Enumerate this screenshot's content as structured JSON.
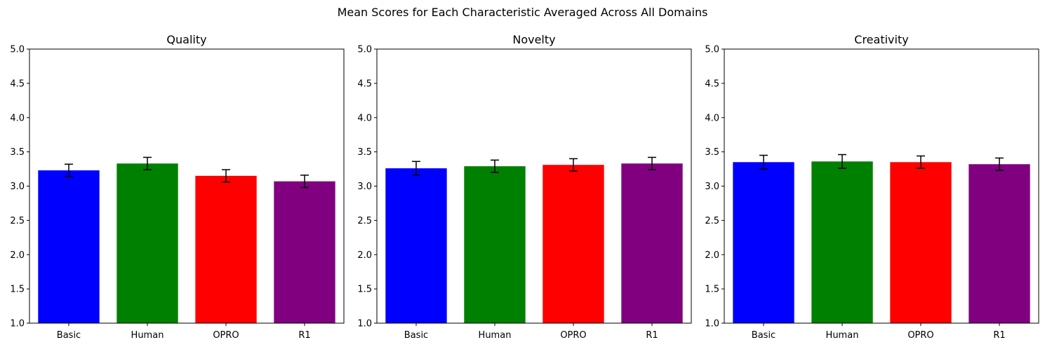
{
  "figure": {
    "title": "Mean Scores for Each Characteristic Averaged Across All Domains"
  },
  "chart_data": [
    {
      "type": "bar",
      "title": "Quality",
      "xlabel": "",
      "ylabel": "",
      "categories": [
        "Basic",
        "Human",
        "OPRO",
        "R1"
      ],
      "values": [
        3.23,
        3.33,
        3.15,
        3.07
      ],
      "errors": [
        0.09,
        0.09,
        0.09,
        0.09
      ],
      "colors": [
        "#0000ff",
        "#008000",
        "#ff0000",
        "#800080"
      ],
      "ylim": [
        1.0,
        5.0
      ],
      "yticks": [
        "1.0",
        "1.5",
        "2.0",
        "2.5",
        "3.0",
        "3.5",
        "4.0",
        "4.5",
        "5.0"
      ],
      "grid": false,
      "legend": "none"
    },
    {
      "type": "bar",
      "title": "Novelty",
      "xlabel": "",
      "ylabel": "",
      "categories": [
        "Basic",
        "Human",
        "OPRO",
        "R1"
      ],
      "values": [
        3.26,
        3.29,
        3.31,
        3.33
      ],
      "errors": [
        0.1,
        0.09,
        0.09,
        0.09
      ],
      "colors": [
        "#0000ff",
        "#008000",
        "#ff0000",
        "#800080"
      ],
      "ylim": [
        1.0,
        5.0
      ],
      "yticks": [
        "1.0",
        "1.5",
        "2.0",
        "2.5",
        "3.0",
        "3.5",
        "4.0",
        "4.5",
        "5.0"
      ],
      "grid": false,
      "legend": "none"
    },
    {
      "type": "bar",
      "title": "Creativity",
      "xlabel": "",
      "ylabel": "",
      "categories": [
        "Basic",
        "Human",
        "OPRO",
        "R1"
      ],
      "values": [
        3.35,
        3.36,
        3.35,
        3.32
      ],
      "errors": [
        0.1,
        0.1,
        0.09,
        0.09
      ],
      "colors": [
        "#0000ff",
        "#008000",
        "#ff0000",
        "#800080"
      ],
      "ylim": [
        1.0,
        5.0
      ],
      "yticks": [
        "1.0",
        "1.5",
        "2.0",
        "2.5",
        "3.0",
        "3.5",
        "4.0",
        "4.5",
        "5.0"
      ],
      "grid": false,
      "legend": "none"
    }
  ]
}
